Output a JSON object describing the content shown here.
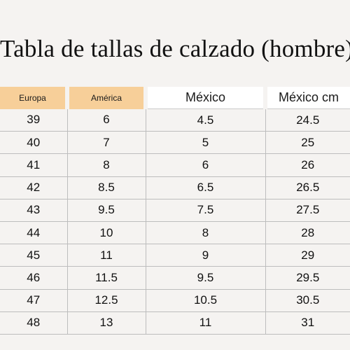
{
  "title": "Tabla de tallas de calzado (hombre)",
  "columns": [
    "Europa",
    "América",
    "México",
    "México cm"
  ],
  "rows": [
    [
      "39",
      "6",
      "4.5",
      "24.5"
    ],
    [
      "40",
      "7",
      "5",
      "25"
    ],
    [
      "41",
      "8",
      "6",
      "26"
    ],
    [
      "42",
      "8.5",
      "6.5",
      "26.5"
    ],
    [
      "43",
      "9.5",
      "7.5",
      "27.5"
    ],
    [
      "44",
      "10",
      "8",
      "28"
    ],
    [
      "45",
      "11",
      "9",
      "29"
    ],
    [
      "46",
      "11.5",
      "9.5",
      "29.5"
    ],
    [
      "47",
      "12.5",
      "10.5",
      "30.5"
    ],
    [
      "48",
      "13",
      "11",
      "31"
    ]
  ],
  "colors": {
    "background": "#f5f3f1",
    "header_highlight": "#f7cf99",
    "header_plain": "#ffffff",
    "grid_line": "#bdbdbd"
  }
}
